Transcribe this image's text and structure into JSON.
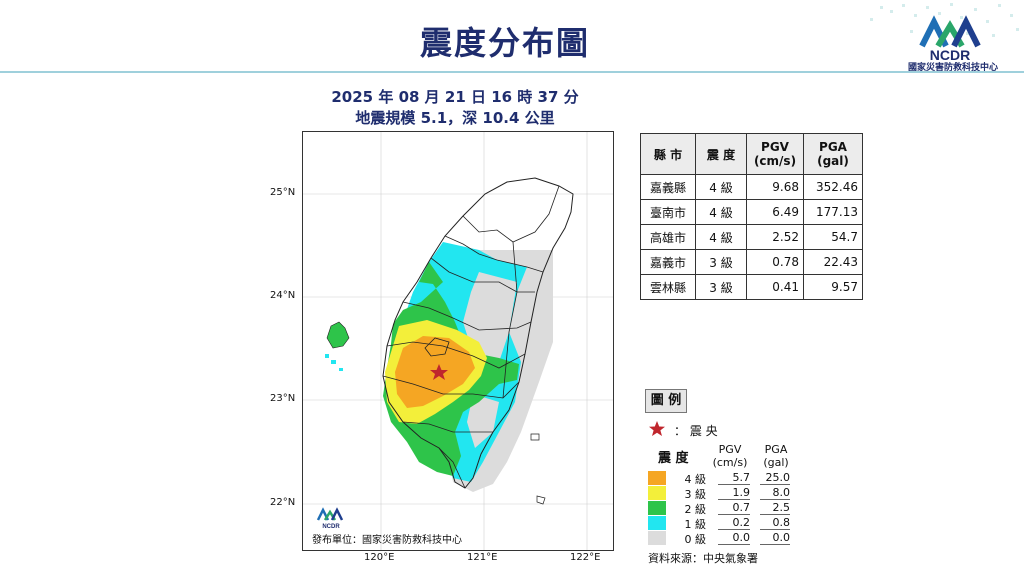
{
  "header": {
    "title": "震度分布圖",
    "org_name": "國家災害防救科技中心",
    "org_abbr": "NCDR"
  },
  "event": {
    "time_line": "2025 年 08 月 21 日 16 時 37 分",
    "magnitude_line": "地震規模 5.1，深 10.4 公里"
  },
  "map": {
    "lat_labels": [
      "25°N",
      "24°N",
      "23°N",
      "22°N"
    ],
    "lon_labels": [
      "120°E",
      "121°E",
      "122°E"
    ],
    "issuer": "發布單位：國家災害防救科技中心",
    "logo_text": "NCDR",
    "epicenter": {
      "lon": 120.6,
      "lat": 23.25
    }
  },
  "table": {
    "headers": [
      "縣 市",
      "震 度",
      "PGV\n(cm/s)",
      "PGA\n(gal)"
    ],
    "rows": [
      [
        "嘉義縣",
        "4 級",
        "9.68",
        "352.46"
      ],
      [
        "臺南市",
        "4 級",
        "6.49",
        "177.13"
      ],
      [
        "高雄市",
        "4 級",
        "2.52",
        "54.7"
      ],
      [
        "嘉義市",
        "3 級",
        "0.78",
        "22.43"
      ],
      [
        "雲林縣",
        "3 級",
        "0.41",
        "9.57"
      ]
    ]
  },
  "legend": {
    "title": "圖 例",
    "epicenter_label": "：  震  央",
    "intensity_header": "震  度",
    "pgv_header": "PGV\n(cm/s)",
    "pga_header": "PGA\n(gal)",
    "levels": [
      {
        "label": "4 級",
        "color": "#f5a623",
        "pgv": "5.7",
        "pga": "25.0"
      },
      {
        "label": "3 級",
        "color": "#f3ef3a",
        "pgv": "1.9",
        "pga": "8.0"
      },
      {
        "label": "2 級",
        "color": "#2ec44a",
        "pgv": "0.7",
        "pga": "2.5"
      },
      {
        "label": "1 級",
        "color": "#22e6f0",
        "pgv": "0.2",
        "pga": "0.8"
      },
      {
        "label": "0 級",
        "color": "#dcdcdc",
        "pgv": "0.0",
        "pga": "0.0"
      }
    ]
  },
  "source": "資料來源：中央氣象署",
  "colors": {
    "title": "#1f2d6e",
    "divider": "#9fd0dc",
    "epicenter": "#c0262d"
  }
}
